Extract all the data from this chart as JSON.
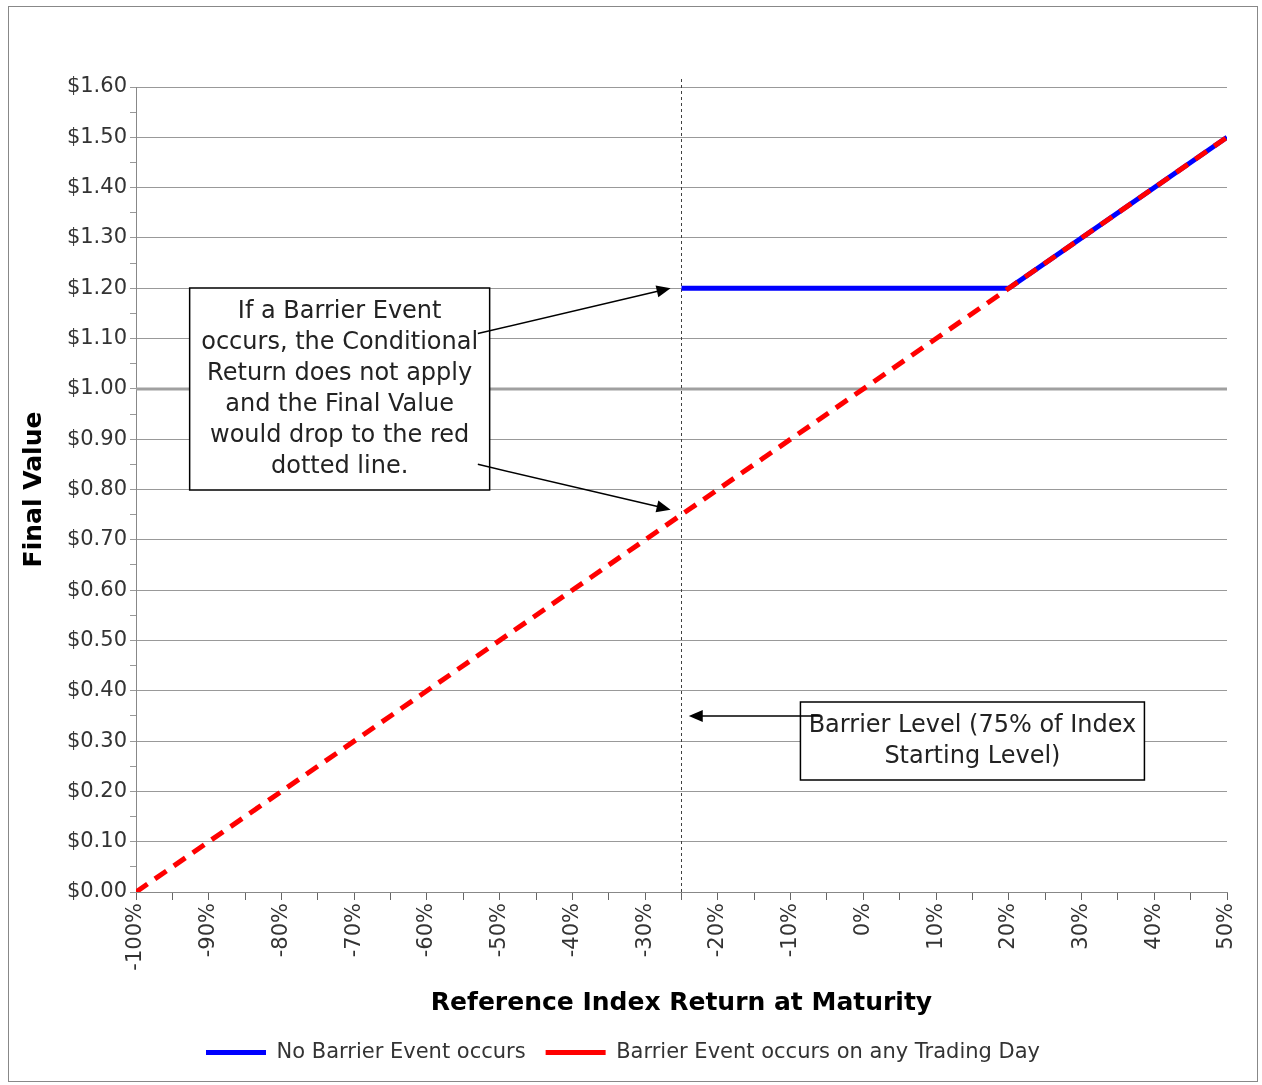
{
  "chart_data": {
    "type": "line",
    "xlabel": "Reference Index Return at Maturity",
    "ylabel": "Final Value",
    "xlim": [
      -100,
      50
    ],
    "xticks": [
      {
        "value": -100,
        "label": "-100%"
      },
      {
        "value": -95,
        "label": null
      },
      {
        "value": -90,
        "label": "-90%"
      },
      {
        "value": -85,
        "label": null
      },
      {
        "value": -80,
        "label": "-80%"
      },
      {
        "value": -75,
        "label": null
      },
      {
        "value": -70,
        "label": "-70%"
      },
      {
        "value": -65,
        "label": null
      },
      {
        "value": -60,
        "label": "-60%"
      },
      {
        "value": -55,
        "label": null
      },
      {
        "value": -50,
        "label": "-50%"
      },
      {
        "value": -45,
        "label": null
      },
      {
        "value": -40,
        "label": "-40%"
      },
      {
        "value": -35,
        "label": null
      },
      {
        "value": -30,
        "label": "-30%"
      },
      {
        "value": -25,
        "label": null
      },
      {
        "value": -20,
        "label": "-20%"
      },
      {
        "value": -15,
        "label": null
      },
      {
        "value": -10,
        "label": "-10%"
      },
      {
        "value": -5,
        "label": null
      },
      {
        "value": 0,
        "label": "0%"
      },
      {
        "value": 5,
        "label": null
      },
      {
        "value": 10,
        "label": "10%"
      },
      {
        "value": 15,
        "label": null
      },
      {
        "value": 20,
        "label": "20%"
      },
      {
        "value": 25,
        "label": null
      },
      {
        "value": 30,
        "label": "30%"
      },
      {
        "value": 35,
        "label": null
      },
      {
        "value": 40,
        "label": "40%"
      },
      {
        "value": 45,
        "label": null
      },
      {
        "value": 50,
        "label": "50%"
      }
    ],
    "ylim": [
      0,
      1.6
    ],
    "yticks": [
      {
        "value": 0,
        "label": "$0.00"
      },
      {
        "value": 0.05,
        "label": null
      },
      {
        "value": 0.1,
        "label": "$0.10"
      },
      {
        "value": 0.15,
        "label": null
      },
      {
        "value": 0.2,
        "label": "$0.20"
      },
      {
        "value": 0.25,
        "label": null
      },
      {
        "value": 0.3,
        "label": "$0.30"
      },
      {
        "value": 0.35,
        "label": null
      },
      {
        "value": 0.4,
        "label": "$0.40"
      },
      {
        "value": 0.45,
        "label": null
      },
      {
        "value": 0.5,
        "label": "$0.50"
      },
      {
        "value": 0.55,
        "label": null
      },
      {
        "value": 0.6,
        "label": "$0.60"
      },
      {
        "value": 0.65,
        "label": null
      },
      {
        "value": 0.7,
        "label": "$0.70"
      },
      {
        "value": 0.75,
        "label": null
      },
      {
        "value": 0.8,
        "label": "$0.80"
      },
      {
        "value": 0.85,
        "label": null
      },
      {
        "value": 0.9,
        "label": "$0.90"
      },
      {
        "value": 0.95,
        "label": null
      },
      {
        "value": 1,
        "label": "$1.00"
      },
      {
        "value": 1.05,
        "label": null
      },
      {
        "value": 1.1,
        "label": "$1.10"
      },
      {
        "value": 1.15,
        "label": null
      },
      {
        "value": 1.2,
        "label": "$1.20"
      },
      {
        "value": 1.25,
        "label": null
      },
      {
        "value": 1.3,
        "label": "$1.30"
      },
      {
        "value": 1.35,
        "label": null
      },
      {
        "value": 1.4,
        "label": "$1.40"
      },
      {
        "value": 1.45,
        "label": null
      },
      {
        "value": 1.5,
        "label": "$1.50"
      },
      {
        "value": 1.55,
        "label": null
      },
      {
        "value": 1.6,
        "label": "$1.60"
      }
    ],
    "grid": "y",
    "legend": "bottom",
    "series": [
      {
        "name": "No Barrier Event occurs",
        "color": "#0000ff",
        "line_style": "solid",
        "x": [
          -25,
          20,
          50
        ],
        "values": [
          1.2,
          1.2,
          1.5
        ]
      },
      {
        "name": "Barrier Event occurs on any Trading Day",
        "color": "#ff0000",
        "line_style": "dashed",
        "x": [
          -100,
          -25,
          20,
          50
        ],
        "values": [
          0,
          0.75,
          1.2,
          1.5
        ]
      }
    ],
    "ref_lines": [
      {
        "axis": "y",
        "value": 1,
        "color": "#a0a0a0",
        "line_style": "solid"
      },
      {
        "axis": "x",
        "value": -25,
        "color": "#404040",
        "line_style": "dotted"
      }
    ],
    "annotations": [
      "If a Barrier Event occurs, the Conditional Return does not apply and the Final Value would drop to the red dotted line.",
      "Barrier Level (75% of Index Starting Level)"
    ]
  }
}
